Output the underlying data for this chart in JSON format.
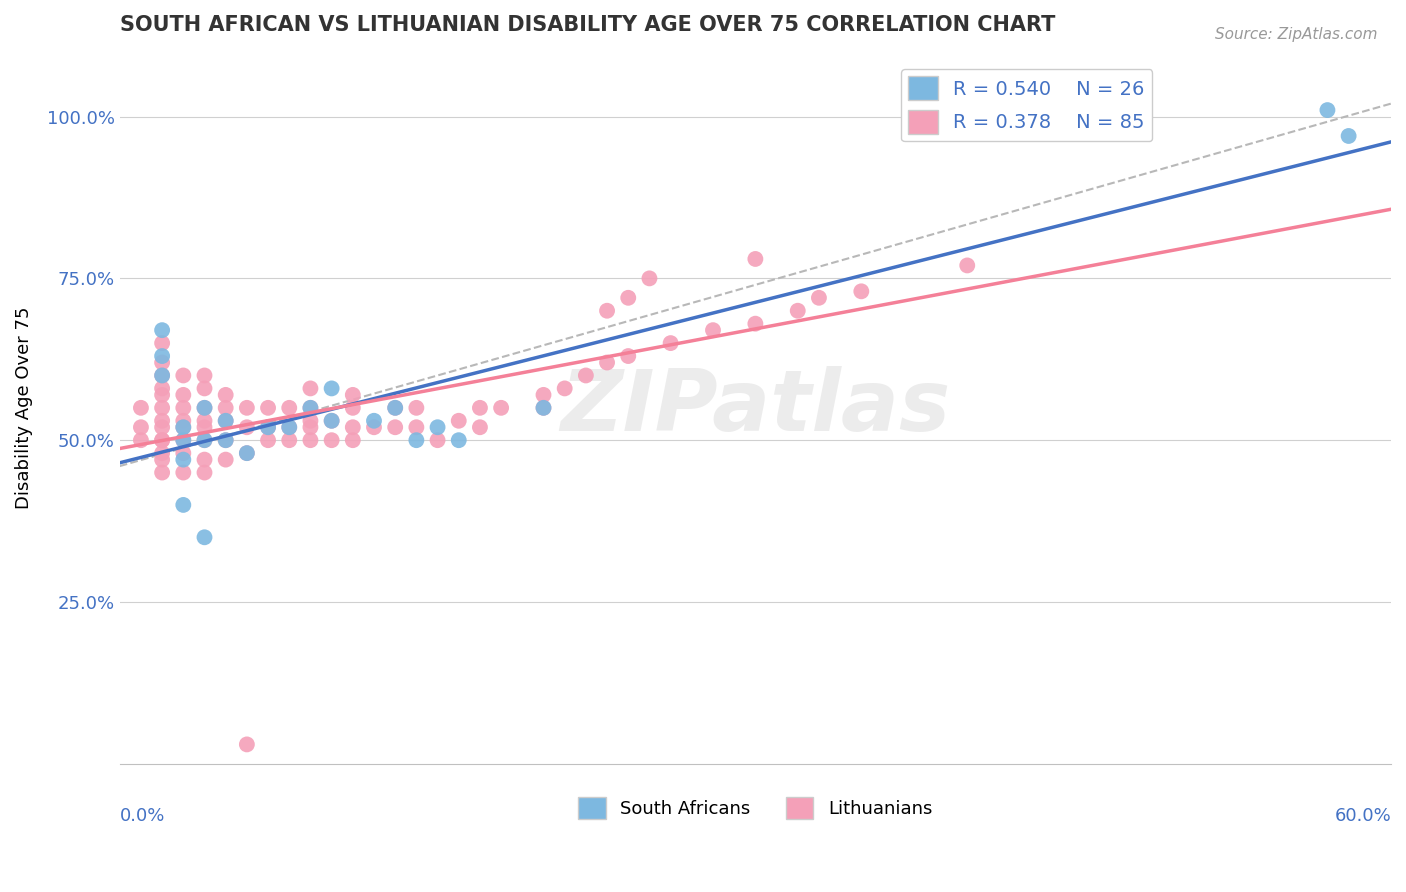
{
  "title": "SOUTH AFRICAN VS LITHUANIAN DISABILITY AGE OVER 75 CORRELATION CHART",
  "source": "Source: ZipAtlas.com",
  "south_african_color": "#7db8e0",
  "lithuanian_color": "#f4a0b8",
  "trend_sa_color": "#4472c4",
  "trend_lt_color": "#f48098",
  "ref_line_color": "#b8b8b8",
  "watermark": "ZIPatlas",
  "sa_x": [
    0.02,
    0.02,
    0.02,
    0.03,
    0.03,
    0.03,
    0.03,
    0.04,
    0.04,
    0.04,
    0.05,
    0.05,
    0.06,
    0.07,
    0.08,
    0.09,
    0.1,
    0.1,
    0.12,
    0.13,
    0.14,
    0.15,
    0.16,
    0.2,
    0.57,
    0.58
  ],
  "sa_y": [
    0.6,
    0.63,
    0.67,
    0.4,
    0.47,
    0.5,
    0.52,
    0.35,
    0.5,
    0.55,
    0.5,
    0.53,
    0.48,
    0.52,
    0.52,
    0.55,
    0.53,
    0.58,
    0.53,
    0.55,
    0.5,
    0.52,
    0.5,
    0.55,
    1.01,
    0.97
  ],
  "lt_x": [
    0.01,
    0.01,
    0.01,
    0.02,
    0.02,
    0.02,
    0.02,
    0.02,
    0.02,
    0.02,
    0.02,
    0.02,
    0.02,
    0.02,
    0.02,
    0.02,
    0.03,
    0.03,
    0.03,
    0.03,
    0.03,
    0.03,
    0.03,
    0.03,
    0.04,
    0.04,
    0.04,
    0.04,
    0.04,
    0.04,
    0.04,
    0.04,
    0.05,
    0.05,
    0.05,
    0.05,
    0.05,
    0.06,
    0.06,
    0.06,
    0.07,
    0.07,
    0.07,
    0.08,
    0.08,
    0.08,
    0.09,
    0.09,
    0.09,
    0.09,
    0.09,
    0.1,
    0.1,
    0.11,
    0.11,
    0.11,
    0.11,
    0.12,
    0.13,
    0.13,
    0.14,
    0.14,
    0.15,
    0.16,
    0.17,
    0.17,
    0.18,
    0.2,
    0.21,
    0.22,
    0.23,
    0.24,
    0.26,
    0.28,
    0.3,
    0.32,
    0.33,
    0.35,
    0.4,
    0.23,
    0.24,
    0.25,
    0.3,
    0.2,
    0.06
  ],
  "lt_y": [
    0.5,
    0.52,
    0.55,
    0.45,
    0.47,
    0.48,
    0.5,
    0.5,
    0.52,
    0.53,
    0.55,
    0.57,
    0.58,
    0.6,
    0.62,
    0.65,
    0.45,
    0.48,
    0.5,
    0.52,
    0.53,
    0.55,
    0.57,
    0.6,
    0.45,
    0.47,
    0.5,
    0.52,
    0.53,
    0.55,
    0.58,
    0.6,
    0.47,
    0.5,
    0.53,
    0.55,
    0.57,
    0.48,
    0.52,
    0.55,
    0.5,
    0.52,
    0.55,
    0.5,
    0.52,
    0.55,
    0.5,
    0.52,
    0.53,
    0.55,
    0.58,
    0.5,
    0.53,
    0.5,
    0.52,
    0.55,
    0.57,
    0.52,
    0.52,
    0.55,
    0.52,
    0.55,
    0.5,
    0.53,
    0.52,
    0.55,
    0.55,
    0.57,
    0.58,
    0.6,
    0.62,
    0.63,
    0.65,
    0.67,
    0.68,
    0.7,
    0.72,
    0.73,
    0.77,
    0.7,
    0.72,
    0.75,
    0.78,
    0.55,
    0.03
  ],
  "xlim": [
    0.0,
    0.6
  ],
  "ylim": [
    0.0,
    1.1
  ],
  "yticks": [
    0.0,
    0.25,
    0.5,
    0.75,
    1.0
  ],
  "ytick_labels": [
    "",
    "25.0%",
    "50.0%",
    "75.0%",
    "100.0%"
  ],
  "background_color": "#ffffff",
  "grid_color": "#d0d0d0",
  "tick_color": "#4472c4"
}
